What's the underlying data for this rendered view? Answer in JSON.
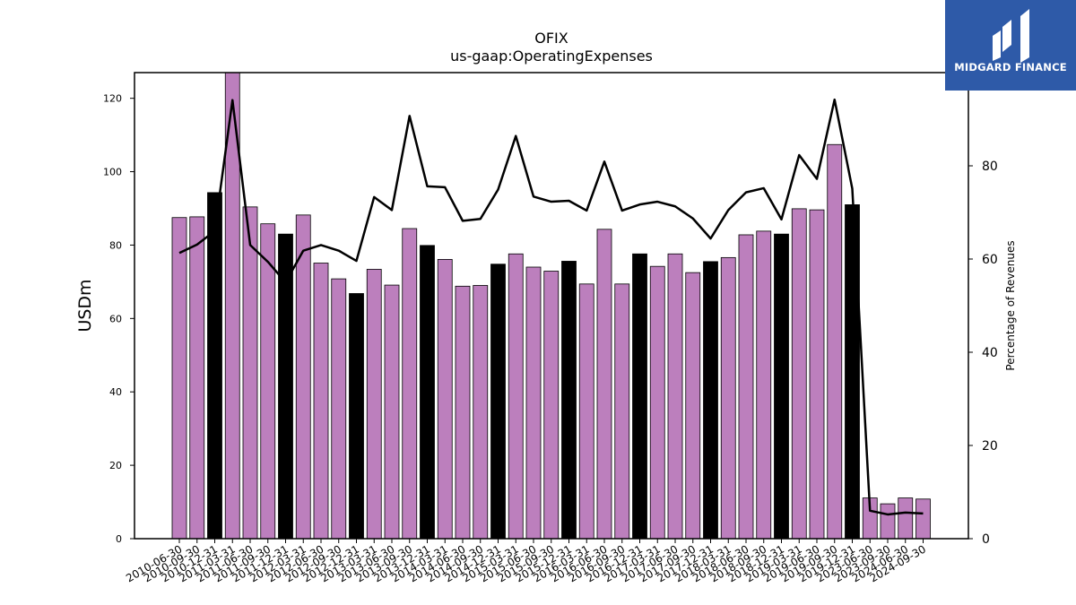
{
  "chart_data": {
    "type": "bar",
    "title": "OFIX",
    "subtitle": "us-gaap:OperatingExpenses",
    "ylabel": "USDm",
    "y2label": "Percentage of Revenues",
    "ylim": [
      0,
      127
    ],
    "y2lim": [
      0,
      100
    ],
    "yticks": [
      0,
      20,
      40,
      60,
      80,
      100,
      120
    ],
    "y2ticks": [
      0,
      20,
      40,
      60,
      80
    ],
    "categories": [
      "2010-06-30",
      "2010-09-30",
      "2010-12-31",
      "2011-03-31",
      "2011-06-30",
      "2011-09-30",
      "2011-12-31",
      "2012-03-31",
      "2012-06-30",
      "2012-09-30",
      "2012-12-31",
      "2013-03-31",
      "2013-06-30",
      "2013-09-30",
      "2013-12-31",
      "2014-03-31",
      "2014-06-30",
      "2014-09-30",
      "2014-12-31",
      "2015-03-31",
      "2015-06-30",
      "2015-09-30",
      "2015-12-31",
      "2016-03-31",
      "2016-06-30",
      "2016-09-30",
      "2016-12-31",
      "2017-03-31",
      "2017-06-30",
      "2017-09-30",
      "2017-12-31",
      "2018-03-31",
      "2018-06-30",
      "2018-09-30",
      "2018-12-31",
      "2019-03-31",
      "2019-06-30",
      "2019-09-30",
      "2019-12-31",
      "2023-06-30",
      "2023-09-30",
      "2024-06-30",
      "2024-09-30"
    ],
    "series": [
      {
        "kind": "bar",
        "axis": "left",
        "values": [
          87.5,
          87.7,
          94.3,
          127.0,
          90.4,
          85.8,
          83.0,
          88.2,
          75.1,
          70.8,
          66.8,
          73.4,
          69.1,
          84.5,
          79.9,
          76.1,
          68.8,
          69.0,
          74.8,
          77.6,
          74.0,
          72.9,
          75.6,
          69.4,
          84.3,
          69.4,
          77.6,
          74.2,
          77.6,
          72.5,
          75.5,
          76.6,
          82.8,
          83.8,
          83.0,
          89.9,
          89.6,
          107.4,
          91.0,
          11.1,
          9.5,
          11.1,
          10.8
        ],
        "colors": [
          "#bc7fbd",
          "#bc7fbd",
          "#000000",
          "#bc7fbd",
          "#bc7fbd",
          "#bc7fbd",
          "#000000",
          "#bc7fbd",
          "#bc7fbd",
          "#bc7fbd",
          "#000000",
          "#bc7fbd",
          "#bc7fbd",
          "#bc7fbd",
          "#000000",
          "#bc7fbd",
          "#bc7fbd",
          "#bc7fbd",
          "#000000",
          "#bc7fbd",
          "#bc7fbd",
          "#bc7fbd",
          "#000000",
          "#bc7fbd",
          "#bc7fbd",
          "#bc7fbd",
          "#000000",
          "#bc7fbd",
          "#bc7fbd",
          "#bc7fbd",
          "#000000",
          "#bc7fbd",
          "#bc7fbd",
          "#bc7fbd",
          "#000000",
          "#bc7fbd",
          "#bc7fbd",
          "#bc7fbd",
          "#000000",
          "#bc7fbd",
          "#bc7fbd",
          "#bc7fbd",
          "#bc7fbd"
        ]
      },
      {
        "kind": "line",
        "axis": "right",
        "color": "#000000",
        "values": [
          61.3,
          63.1,
          66.0,
          94.1,
          63.0,
          59.4,
          55.0,
          61.8,
          63.0,
          61.8,
          59.6,
          73.3,
          70.5,
          90.7,
          75.6,
          75.4,
          68.2,
          68.6,
          74.9,
          86.4,
          73.4,
          72.3,
          72.5,
          70.4,
          80.9,
          70.4,
          71.7,
          72.3,
          71.3,
          68.7,
          64.4,
          70.5,
          74.3,
          75.2,
          68.5,
          82.3,
          77.2,
          94.2,
          75.1,
          6.0,
          5.2,
          5.6,
          5.4
        ]
      }
    ]
  },
  "logo": {
    "text": "MIDGARD FINANCE",
    "bg_color": "#2e5aa8"
  }
}
